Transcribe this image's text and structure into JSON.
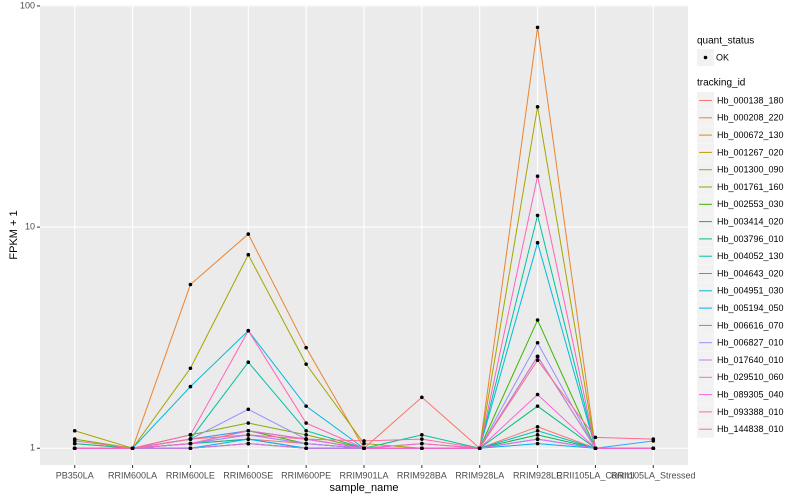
{
  "chart_data": {
    "type": "line",
    "x_label": "sample_name",
    "y_label": "FPKM + 1",
    "log_y": true,
    "grid": true,
    "categories": [
      "PB350LA",
      "RRIM600LA",
      "RRIM600LE",
      "RRIM600SE",
      "RRIM600PE",
      "RRIM901LA",
      "RRIM928BA",
      "RRIM928LA",
      "RRIM928LE",
      "RRII105LA_Control",
      "RRII105LA_Stressed"
    ],
    "ylim": [
      0.84,
      101
    ],
    "yticks": [
      1,
      10,
      100
    ],
    "point_legend_title": "quant_status",
    "point_legend_label": "OK",
    "point_color": "#000000",
    "legend_title": "tracking_id",
    "legend_position": "right",
    "series": [
      {
        "name": "Hb_000138_180",
        "color": "#F8766D",
        "values": [
          1,
          1,
          1.05,
          1.1,
          1.05,
          1,
          1.7,
          1,
          1.25,
          1,
          1
        ]
      },
      {
        "name": "Hb_000208_220",
        "color": "#EA8331",
        "values": [
          1,
          1,
          5.5,
          9.3,
          2.85,
          1,
          1,
          1,
          80,
          1,
          1
        ]
      },
      {
        "name": "Hb_000672_130",
        "color": "#D89000",
        "values": [
          1.05,
          1,
          1.1,
          1.2,
          1.1,
          1,
          1,
          1,
          2.6,
          1,
          1
        ]
      },
      {
        "name": "Hb_001267_020",
        "color": "#C09B00",
        "values": [
          1,
          1,
          1,
          1.05,
          1,
          1,
          1,
          1,
          1.1,
          1,
          1
        ]
      },
      {
        "name": "Hb_001300_090",
        "color": "#A3A500",
        "values": [
          1.2,
          1,
          2.3,
          7.5,
          2.4,
          1.05,
          1,
          1,
          35,
          1,
          1
        ]
      },
      {
        "name": "Hb_001761_160",
        "color": "#7CAE00",
        "values": [
          1.1,
          1,
          1.15,
          1.3,
          1.15,
          1,
          1.05,
          1,
          2.6,
          1,
          1
        ]
      },
      {
        "name": "Hb_002553_030",
        "color": "#39B600",
        "values": [
          1,
          1,
          1.05,
          1.2,
          1.05,
          1,
          1,
          1,
          3.8,
          1,
          1
        ]
      },
      {
        "name": "Hb_003414_020",
        "color": "#00BB4E",
        "values": [
          1,
          1,
          1,
          1.05,
          1,
          1,
          1,
          1,
          1.15,
          1,
          1
        ]
      },
      {
        "name": "Hb_003796_010",
        "color": "#00BF7D",
        "values": [
          1,
          1,
          1.05,
          1.1,
          1,
          1,
          1,
          1,
          1.55,
          1,
          1
        ]
      },
      {
        "name": "Hb_004052_130",
        "color": "#00C1A3",
        "values": [
          1.05,
          1,
          1.1,
          2.45,
          1.2,
          1,
          1.15,
          1,
          11.3,
          1,
          1
        ]
      },
      {
        "name": "Hb_004643_020",
        "color": "#00BFC4",
        "values": [
          1,
          1,
          1.05,
          1.15,
          1.05,
          1,
          1,
          1,
          1.2,
          1,
          1
        ]
      },
      {
        "name": "Hb_004951_030",
        "color": "#00BAE0",
        "values": [
          1,
          1,
          1.9,
          3.4,
          1.55,
          1,
          1,
          1,
          8.5,
          1,
          1
        ]
      },
      {
        "name": "Hb_005194_050",
        "color": "#00B0F6",
        "values": [
          1,
          1,
          1,
          1.1,
          1,
          1,
          1,
          1,
          1.05,
          1,
          1
        ]
      },
      {
        "name": "Hb_006616_070",
        "color": "#35A2FF",
        "values": [
          1,
          1,
          1.1,
          1.2,
          1.1,
          1,
          1,
          1,
          1.1,
          1,
          1.08
        ]
      },
      {
        "name": "Hb_006827_010",
        "color": "#9590FF",
        "values": [
          1,
          1,
          1.1,
          1.5,
          1.1,
          1,
          1,
          1,
          3,
          1,
          1
        ]
      },
      {
        "name": "Hb_017640_010",
        "color": "#C77CFF",
        "values": [
          1,
          1,
          1.05,
          1.15,
          1.05,
          1,
          1,
          1,
          2.6,
          1,
          1
        ]
      },
      {
        "name": "Hb_029510_060",
        "color": "#E76BF3",
        "values": [
          1,
          1,
          1,
          1.05,
          1,
          1,
          1,
          1,
          1.1,
          1,
          1
        ]
      },
      {
        "name": "Hb_089305_040",
        "color": "#FA62DB",
        "values": [
          1,
          1,
          1.05,
          1.2,
          1.1,
          1,
          1.05,
          1,
          1.75,
          1,
          1
        ]
      },
      {
        "name": "Hb_093388_010",
        "color": "#FF62BC",
        "values": [
          1,
          1,
          1.15,
          3.4,
          1.3,
          1,
          1,
          1,
          17,
          1,
          1
        ]
      },
      {
        "name": "Hb_144838_010",
        "color": "#FF6C90",
        "values": [
          1.08,
          1,
          1.1,
          1.15,
          1.1,
          1.08,
          1.1,
          1,
          2.5,
          1.12,
          1.1
        ]
      }
    ]
  }
}
